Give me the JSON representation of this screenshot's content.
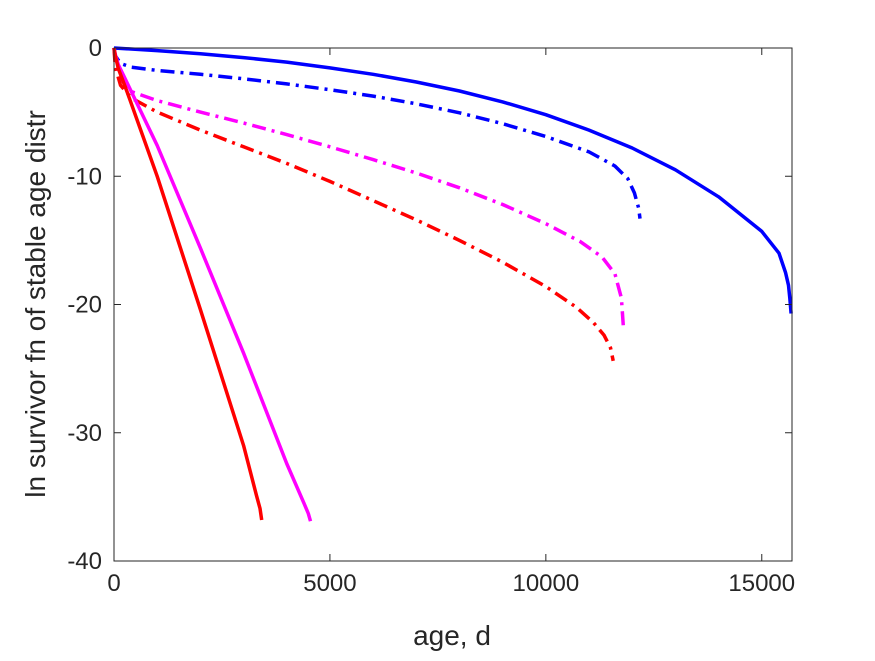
{
  "chart_data": {
    "type": "line",
    "title": "",
    "xlabel": "age, d",
    "ylabel": "ln survivor fn of stable age distr",
    "xlim": [
      0,
      15700
    ],
    "ylim": [
      -40,
      0
    ],
    "xticks": [
      0,
      5000,
      10000,
      15000
    ],
    "yticks": [
      0,
      -10,
      -20,
      -30,
      -40
    ],
    "xtick_labels": [
      "0",
      "5000",
      "10000",
      "15000"
    ],
    "ytick_labels": [
      "0",
      "-10",
      "-20",
      "-30",
      "-40"
    ],
    "grid": false,
    "legend": "none",
    "series": [
      {
        "color": "#0000ff",
        "style": "solid",
        "x": [
          0,
          1000,
          2000,
          3000,
          4000,
          5000,
          6000,
          7000,
          8000,
          9000,
          10000,
          11000,
          12000,
          13000,
          14000,
          15000,
          15400,
          15550,
          15620,
          15650,
          15680
        ],
        "y": [
          0,
          -0.2,
          -0.45,
          -0.75,
          -1.1,
          -1.55,
          -2.05,
          -2.65,
          -3.35,
          -4.2,
          -5.2,
          -6.4,
          -7.8,
          -9.5,
          -11.6,
          -14.3,
          -16.0,
          -17.5,
          -18.5,
          -19.5,
          -20.7
        ]
      },
      {
        "color": "#0000ff",
        "style": "dashdot",
        "x": [
          0,
          30,
          150,
          400,
          1000,
          2000,
          3000,
          4000,
          5000,
          6000,
          7000,
          8000,
          9000,
          10000,
          11000,
          11600,
          11900,
          12050,
          12150,
          12180
        ],
        "y": [
          0,
          -0.6,
          -1.2,
          -1.5,
          -1.75,
          -2.05,
          -2.4,
          -2.8,
          -3.25,
          -3.75,
          -4.35,
          -5.05,
          -5.9,
          -6.9,
          -8.1,
          -9.2,
          -10.2,
          -11.3,
          -12.5,
          -13.3
        ]
      },
      {
        "color": "#ff00ff",
        "style": "dashdot",
        "x": [
          0,
          30,
          150,
          400,
          1000,
          2000,
          3000,
          4000,
          5000,
          6000,
          7000,
          8000,
          9000,
          10000,
          10800,
          11300,
          11600,
          11750,
          11800
        ],
        "y": [
          0,
          -1.0,
          -2.4,
          -3.4,
          -4.1,
          -5.0,
          -5.85,
          -6.75,
          -7.7,
          -8.7,
          -9.75,
          -10.9,
          -12.2,
          -13.7,
          -15.1,
          -16.3,
          -17.6,
          -19.5,
          -22.0
        ]
      },
      {
        "color": "#ff0000",
        "style": "dashdot",
        "x": [
          0,
          30,
          150,
          400,
          1000,
          2000,
          3000,
          4000,
          5000,
          6000,
          7000,
          8000,
          9000,
          10000,
          10700,
          11100,
          11350,
          11500,
          11560
        ],
        "y": [
          0,
          -1.5,
          -2.9,
          -3.9,
          -5.0,
          -6.4,
          -7.7,
          -9.0,
          -10.4,
          -11.9,
          -13.4,
          -15.0,
          -16.7,
          -18.6,
          -20.2,
          -21.4,
          -22.4,
          -23.4,
          -24.4
        ]
      },
      {
        "color": "#ff00ff",
        "style": "solid",
        "x": [
          0,
          30,
          100,
          300,
          1000,
          2000,
          3000,
          4000,
          4400,
          4500,
          4550
        ],
        "y": [
          0,
          -0.5,
          -1.3,
          -2.7,
          -7.6,
          -15.6,
          -23.8,
          -32.4,
          -35.5,
          -36.3,
          -36.9
        ]
      },
      {
        "color": "#ff0000",
        "style": "solid",
        "x": [
          0,
          30,
          100,
          300,
          1000,
          2000,
          3000,
          3300,
          3380,
          3420
        ],
        "y": [
          0,
          -0.6,
          -1.6,
          -3.4,
          -10.0,
          -20.4,
          -31.0,
          -34.9,
          -35.9,
          -36.8
        ]
      }
    ]
  }
}
